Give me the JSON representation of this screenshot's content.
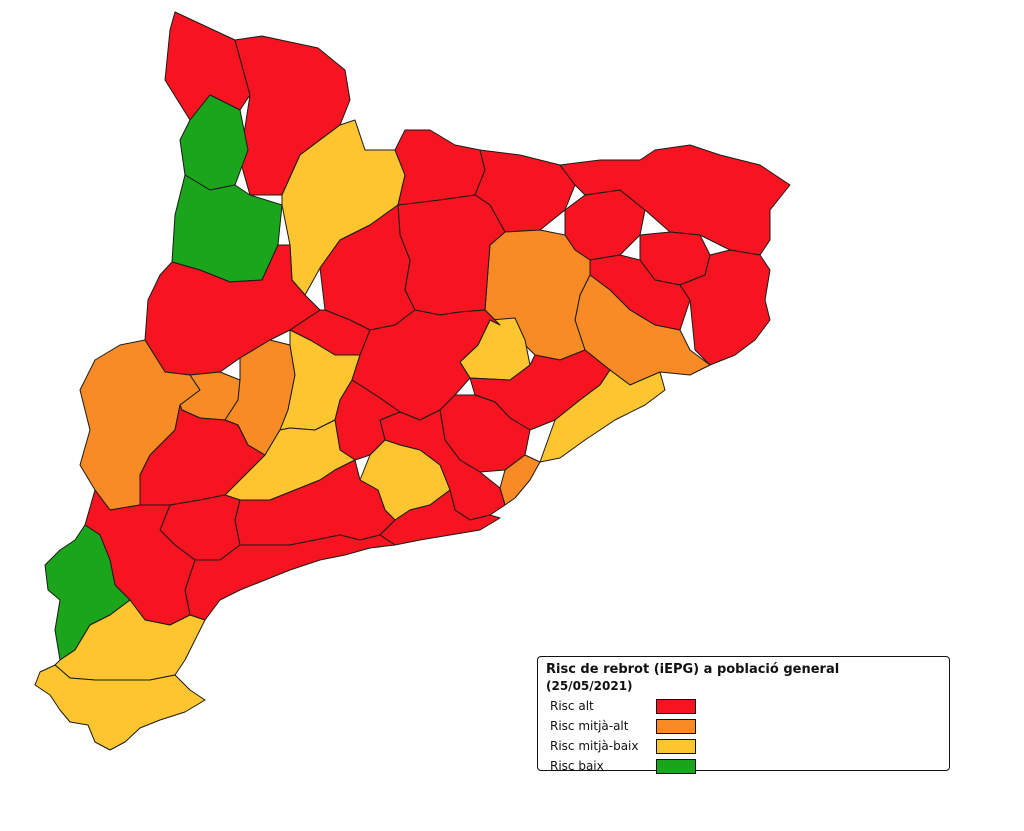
{
  "colors": {
    "risc_alt": "#f5141f",
    "risc_mitja_alt": "#f98b26",
    "risc_mitja_baix": "#fdc52f",
    "risc_baix": "#1aa51c"
  },
  "regions": [
    {
      "name": "region-north-pyrenees-west",
      "risk": "risc_alt"
    },
    {
      "name": "region-north-pyrenees-center",
      "risk": "risc_alt"
    },
    {
      "name": "region-val-aran",
      "risk": "risc_baix"
    },
    {
      "name": "region-alta-ribagorca",
      "risk": "risc_baix"
    },
    {
      "name": "region-alt-urgell",
      "risk": "risc_mitja_baix"
    },
    {
      "name": "region-cerdanya",
      "risk": "risc_alt"
    },
    {
      "name": "region-ripolles",
      "risk": "risc_alt"
    },
    {
      "name": "region-garrotxa",
      "risk": "risc_alt"
    },
    {
      "name": "region-alt-emporda",
      "risk": "risc_alt"
    },
    {
      "name": "region-pla-estany",
      "risk": "risc_alt"
    },
    {
      "name": "region-girones",
      "risk": "risc_alt"
    },
    {
      "name": "region-baix-emporda",
      "risk": "risc_alt"
    },
    {
      "name": "region-selva",
      "risk": "risc_mitja_alt"
    },
    {
      "name": "region-osona",
      "risk": "risc_mitja_alt"
    },
    {
      "name": "region-vic",
      "risk": "risc_mitja_baix"
    },
    {
      "name": "region-bergueda",
      "risk": "risc_alt"
    },
    {
      "name": "region-solsones",
      "risk": "risc_alt"
    },
    {
      "name": "region-pallars-jussa",
      "risk": "risc_alt"
    },
    {
      "name": "region-noguera",
      "risk": "risc_alt"
    },
    {
      "name": "region-segria",
      "risk": "risc_mitja_alt"
    },
    {
      "name": "region-pla-urgell",
      "risk": "risc_mitja_alt"
    },
    {
      "name": "region-urgell",
      "risk": "risc_mitja_alt"
    },
    {
      "name": "region-segarra",
      "risk": "risc_mitja_baix"
    },
    {
      "name": "region-bages",
      "risk": "risc_alt"
    },
    {
      "name": "region-moianes",
      "risk": "risc_alt"
    },
    {
      "name": "region-valles-oriental",
      "risk": "risc_alt"
    },
    {
      "name": "region-maresme",
      "risk": "risc_mitja_baix"
    },
    {
      "name": "region-barcelones",
      "risk": "risc_mitja_alt"
    },
    {
      "name": "region-valles-occidental",
      "risk": "risc_alt"
    },
    {
      "name": "region-anoia",
      "risk": "risc_alt"
    },
    {
      "name": "region-conca-barbera",
      "risk": "risc_mitja_baix"
    },
    {
      "name": "region-alt-penedes",
      "risk": "risc_mitja_baix"
    },
    {
      "name": "region-garrigues",
      "risk": "risc_alt"
    },
    {
      "name": "region-priorat",
      "risk": "risc_alt"
    },
    {
      "name": "region-alt-camp",
      "risk": "risc_alt"
    },
    {
      "name": "region-baix-camp",
      "risk": "risc_alt"
    },
    {
      "name": "region-tarragones",
      "risk": "risc_alt"
    },
    {
      "name": "region-ribera-ebre",
      "risk": "risc_alt"
    },
    {
      "name": "region-terra-alta",
      "risk": "risc_baix"
    },
    {
      "name": "region-baix-ebre",
      "risk": "risc_mitja_baix"
    },
    {
      "name": "region-montsia",
      "risk": "risc_mitja_baix"
    }
  ],
  "legend": {
    "title": "Risc de rebrot (iEPG) a població general",
    "date": "(25/05/2021)",
    "items": [
      {
        "label": "Risc alt",
        "risk": "risc_alt"
      },
      {
        "label": "Risc mitjà-alt",
        "risk": "risc_mitja_alt"
      },
      {
        "label": "Risc mitjà-baix",
        "risk": "risc_mitja_baix"
      },
      {
        "label": "Risc baix",
        "risk": "risc_baix"
      }
    ]
  }
}
